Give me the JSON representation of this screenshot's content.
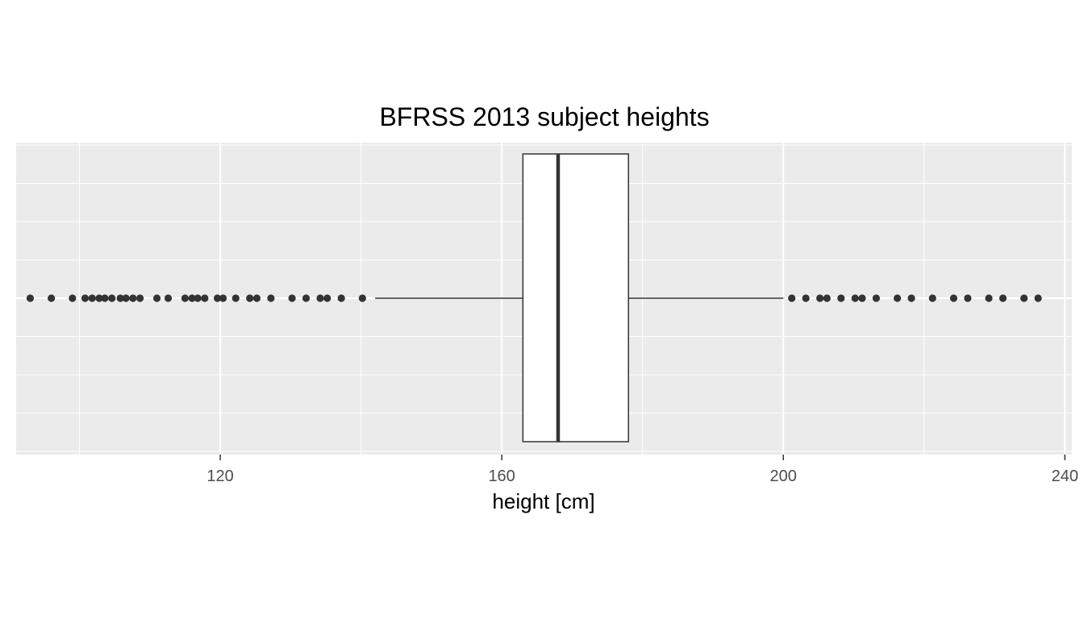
{
  "chart_data": {
    "type": "boxplot",
    "title": "BFRSS 2013 subject heights",
    "xlabel": "height [cm]",
    "ylabel": "",
    "xlim": [
      91,
      241
    ],
    "x_ticks": [
      120,
      160,
      200,
      240
    ],
    "x_tick_labels": [
      "120",
      "160",
      "200",
      "240"
    ],
    "grid": true,
    "legend": "none",
    "box": {
      "q1": 163,
      "median": 168,
      "q3": 178,
      "whisker_low": 142,
      "whisker_high": 200
    },
    "outliers": [
      93,
      96,
      99,
      100.8,
      101.8,
      102.8,
      103.6,
      104.6,
      105.8,
      106.6,
      107.6,
      108.6,
      111,
      112.6,
      115,
      116,
      116.8,
      117.8,
      119.6,
      120.4,
      122.2,
      124.2,
      125.2,
      127.2,
      130.2,
      132.2,
      134.2,
      135.2,
      137.2,
      140.2,
      201.2,
      203.2,
      205.2,
      206.2,
      208.2,
      210.2,
      211.2,
      213.2,
      216.2,
      218.2,
      221.2,
      224.2,
      226.2,
      229.2,
      231.2,
      234.2,
      236.2
    ],
    "colors": {
      "panel_background": "#ebebeb",
      "grid": "#ffffff",
      "box_fill": "#ffffff",
      "box_stroke": "#333333",
      "outlier": "#333333"
    }
  }
}
